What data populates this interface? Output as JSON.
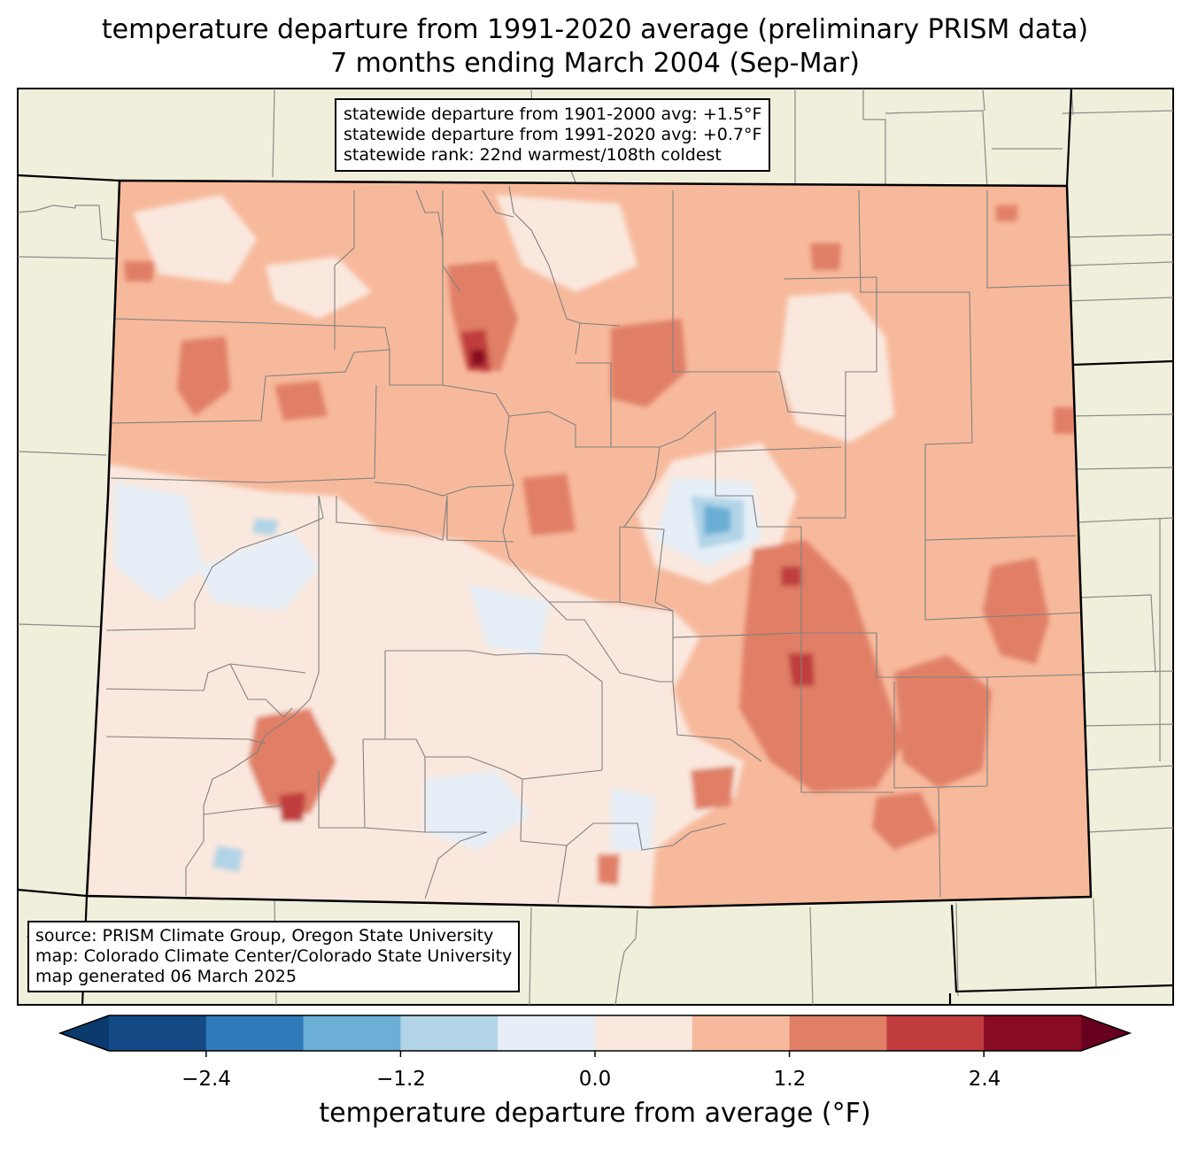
{
  "title": {
    "line1": "temperature departure from 1991-2020 average (preliminary PRISM data)",
    "line2": "7 months ending March 2004 (Sep-Mar)"
  },
  "stats": {
    "line1": "statewide departure from 1901-2000 avg: +1.5°F",
    "line2": "statewide departure from 1991-2020 avg: +0.7°F",
    "line3": "statewide rank: 22nd warmest/108th coldest"
  },
  "source": {
    "line1": "source: PRISM Climate Group, Oregon State University",
    "line2": "map: Colorado Climate Center/Colorado State University",
    "line3": "map generated 06 March 2025"
  },
  "colorbar": {
    "label": "temperature departure from average (°F)",
    "ticks": [
      "−2.4",
      "−1.2",
      "0.0",
      "1.2",
      "2.4"
    ],
    "colors": [
      "#0b3b6e",
      "#144b87",
      "#2f7ab8",
      "#6baed6",
      "#b2d4e7",
      "#e6eff7",
      "#fae8de",
      "#f7b99c",
      "#e07f66",
      "#c03c3d",
      "#870b23",
      "#67001f"
    ],
    "bounds": [
      -3.0,
      -2.4,
      -1.8,
      -1.2,
      -0.6,
      0.0,
      0.6,
      1.2,
      1.8,
      2.4,
      3.0
    ]
  },
  "colors": {
    "land": "#f0efdc",
    "state_fill_base": "#f7b99c"
  }
}
